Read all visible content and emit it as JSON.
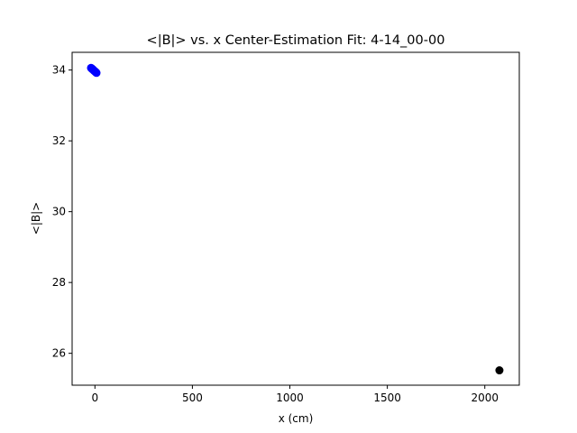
{
  "chart_data": {
    "type": "scatter",
    "title": "<|B|> vs. x Center-Estimation Fit: 4-14_00-00",
    "xlabel": "x (cm)",
    "ylabel": "<|B|>",
    "xlim": [
      -117,
      2177
    ],
    "ylim": [
      25.1,
      34.5
    ],
    "xticks": [
      0,
      500,
      1000,
      1500,
      2000
    ],
    "xtick_labels": [
      "0",
      "500",
      "1000",
      "1500",
      "2000"
    ],
    "yticks": [
      26,
      28,
      30,
      32,
      34
    ],
    "ytick_labels": [
      "26",
      "28",
      "30",
      "32",
      "34"
    ],
    "grid": false,
    "series": [
      {
        "color": "#0000ff",
        "points": [
          {
            "x": -20,
            "y": 34.06
          },
          {
            "x": -18,
            "y": 34.05
          },
          {
            "x": -16,
            "y": 34.04
          },
          {
            "x": -14,
            "y": 34.03
          },
          {
            "x": -12,
            "y": 34.02
          },
          {
            "x": -10,
            "y": 34.01
          },
          {
            "x": -8,
            "y": 34.0
          },
          {
            "x": -6,
            "y": 33.99
          },
          {
            "x": -4,
            "y": 33.98
          },
          {
            "x": -2,
            "y": 33.97
          },
          {
            "x": 0,
            "y": 33.96
          },
          {
            "x": 2,
            "y": 33.95
          },
          {
            "x": 4,
            "y": 33.94
          },
          {
            "x": 6,
            "y": 33.93
          },
          {
            "x": 8,
            "y": 33.92
          }
        ]
      },
      {
        "color": "#000000",
        "points": [
          {
            "x": 2075,
            "y": 25.52
          }
        ]
      }
    ]
  }
}
